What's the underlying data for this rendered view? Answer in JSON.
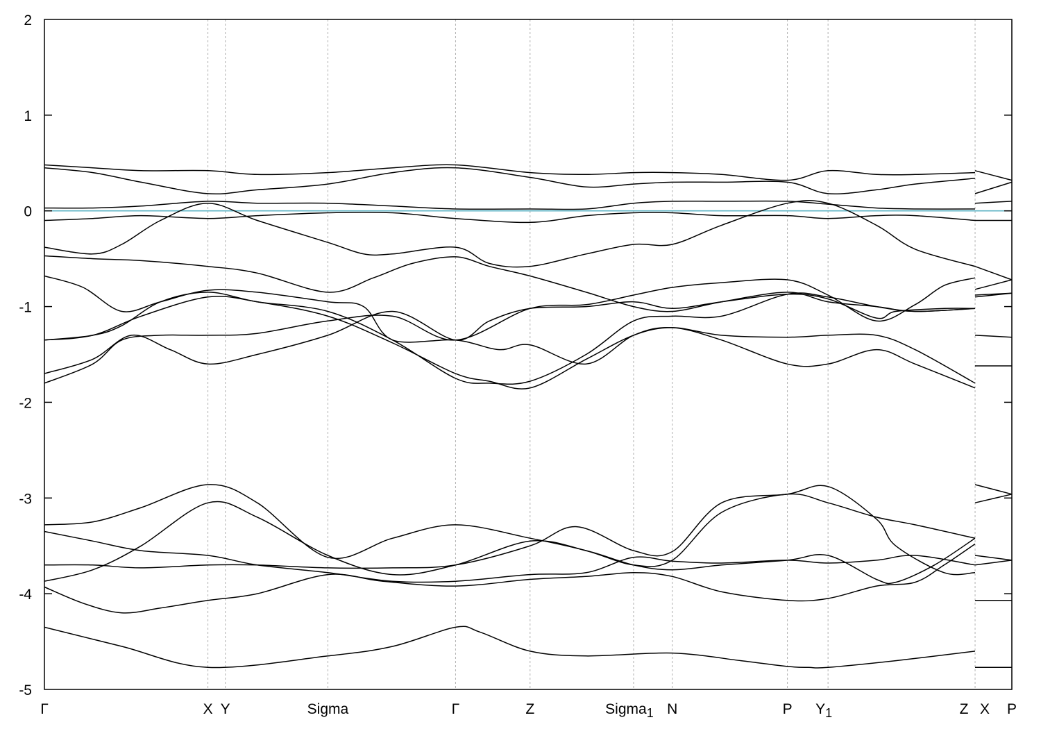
{
  "chart_data": {
    "type": "line",
    "title": "",
    "xlabel": "",
    "ylabel": "",
    "ylim": [
      -5,
      2
    ],
    "xlim": [
      0,
      1.0
    ],
    "y_ticks": [
      -5,
      -4,
      -3,
      -2,
      -1,
      0,
      1,
      2
    ],
    "y_tick_labels": [
      "-5",
      "-4",
      "-3",
      "-2",
      "-1",
      "0",
      "1",
      "2"
    ],
    "grid": "dashed vertical lines at high-symmetry points",
    "legend": "none",
    "fermi_level": {
      "y": 0,
      "color": "#5fb3c4"
    },
    "high_symmetry_points": [
      {
        "label": "Γ",
        "sub": "",
        "x": 0.0
      },
      {
        "label": "X",
        "sub": "",
        "x": 0.169
      },
      {
        "label": "Y",
        "sub": "",
        "x": 0.187
      },
      {
        "label": "Sigma",
        "sub": "",
        "x": 0.293
      },
      {
        "label": "Γ",
        "sub": "",
        "x": 0.425
      },
      {
        "label": "Z",
        "sub": "",
        "x": 0.502
      },
      {
        "label": "Sigma",
        "sub": "1",
        "x": 0.609
      },
      {
        "label": "N",
        "sub": "",
        "x": 0.649
      },
      {
        "label": "P",
        "sub": "",
        "x": 0.768
      },
      {
        "label": "Y",
        "sub": "1",
        "x": 0.81
      },
      {
        "label": "Z",
        "sub": "",
        "x": 0.962
      },
      {
        "label": "X",
        "sub": "",
        "x": 0.962
      },
      {
        "label": "P",
        "sub": "",
        "x": 1.0
      }
    ],
    "band_color": "#000000",
    "series": [
      {
        "x": [
          0,
          0.08,
          0.169,
          0.293,
          0.36,
          0.425,
          0.45,
          0.502,
          0.56,
          0.649,
          0.72,
          0.768,
          0.79,
          0.81,
          0.88,
          0.962
        ],
        "values": [
          -4.35,
          -4.55,
          -4.77,
          -4.65,
          -4.55,
          -4.35,
          -4.4,
          -4.6,
          -4.65,
          -4.62,
          -4.7,
          -4.76,
          -4.77,
          -4.77,
          -4.7,
          -4.6
        ]
      },
      {
        "x": [
          0.962,
          1.0
        ],
        "values": [
          -4.77,
          -4.77
        ]
      },
      {
        "x": [
          0,
          0.04,
          0.08,
          0.12,
          0.169,
          0.22,
          0.293,
          0.35,
          0.425,
          0.502,
          0.56,
          0.609,
          0.649,
          0.7,
          0.768,
          0.81,
          0.86,
          0.9,
          0.93,
          0.962
        ],
        "values": [
          -3.93,
          -4.1,
          -4.2,
          -4.15,
          -4.07,
          -4.0,
          -3.8,
          -3.87,
          -3.92,
          -3.85,
          -3.82,
          -3.78,
          -3.82,
          -3.98,
          -4.07,
          -4.05,
          -3.92,
          -3.88,
          -3.7,
          -3.48
        ]
      },
      {
        "x": [
          0.962,
          1.0
        ],
        "values": [
          -4.07,
          -4.07
        ]
      },
      {
        "x": [
          0,
          0.05,
          0.1,
          0.169,
          0.22,
          0.293,
          0.36,
          0.425,
          0.502,
          0.56,
          0.609,
          0.649,
          0.7,
          0.768,
          0.81,
          0.86,
          0.88,
          0.92,
          0.962
        ],
        "values": [
          -3.87,
          -3.75,
          -3.5,
          -3.05,
          -3.2,
          -3.6,
          -3.8,
          -3.7,
          -3.45,
          -3.55,
          -3.7,
          -3.75,
          -3.7,
          -3.65,
          -3.6,
          -3.85,
          -3.88,
          -3.7,
          -3.42
        ]
      },
      {
        "x": [
          0.962,
          1.0
        ],
        "values": [
          -3.05,
          -2.96
        ]
      },
      {
        "x": [
          0,
          0.05,
          0.1,
          0.169,
          0.22,
          0.293,
          0.36,
          0.425,
          0.502,
          0.56,
          0.609,
          0.649,
          0.7,
          0.768,
          0.81,
          0.86,
          0.9,
          0.962
        ],
        "values": [
          -3.28,
          -3.25,
          -3.1,
          -2.86,
          -3.05,
          -3.62,
          -3.42,
          -3.28,
          -3.42,
          -3.55,
          -3.7,
          -3.65,
          -3.15,
          -2.96,
          -3.05,
          -3.2,
          -3.28,
          -3.42
        ]
      },
      {
        "x": [
          0.962,
          1.0
        ],
        "values": [
          -2.86,
          -2.96
        ]
      },
      {
        "x": [
          0,
          0.05,
          0.1,
          0.169,
          0.22,
          0.293,
          0.36,
          0.425,
          0.502,
          0.55,
          0.609,
          0.649,
          0.7,
          0.768,
          0.81,
          0.86,
          0.88,
          0.93,
          0.962
        ],
        "values": [
          -3.7,
          -3.7,
          -3.73,
          -3.7,
          -3.7,
          -3.73,
          -3.73,
          -3.7,
          -3.5,
          -3.3,
          -3.55,
          -3.56,
          -3.05,
          -2.96,
          -2.88,
          -3.22,
          -3.5,
          -3.78,
          -3.78
        ]
      },
      {
        "x": [
          0.962,
          1.0
        ],
        "values": [
          -3.6,
          -3.65
        ]
      },
      {
        "x": [
          0,
          0.05,
          0.1,
          0.169,
          0.22,
          0.293,
          0.36,
          0.425,
          0.502,
          0.56,
          0.609,
          0.649,
          0.7,
          0.768,
          0.81,
          0.86,
          0.9,
          0.962
        ],
        "values": [
          -3.35,
          -3.45,
          -3.55,
          -3.6,
          -3.7,
          -3.78,
          -3.87,
          -3.87,
          -3.8,
          -3.78,
          -3.62,
          -3.66,
          -3.68,
          -3.65,
          -3.68,
          -3.65,
          -3.6,
          -3.7
        ]
      },
      {
        "x": [
          0.962,
          1.0
        ],
        "values": [
          -3.7,
          -3.65
        ]
      },
      {
        "x": [
          0,
          0.05,
          0.08,
          0.12,
          0.169,
          0.22,
          0.293,
          0.36,
          0.425,
          0.502,
          0.56,
          0.609,
          0.649,
          0.7,
          0.768,
          0.81,
          0.86,
          0.9,
          0.93,
          0.962
        ],
        "values": [
          -1.8,
          -1.6,
          -1.35,
          -1.3,
          -1.3,
          -1.28,
          -1.15,
          -1.1,
          -1.35,
          -1.02,
          -0.98,
          -0.88,
          -0.8,
          -0.75,
          -0.72,
          -0.88,
          -1.15,
          -0.98,
          -0.78,
          -0.7
        ]
      },
      {
        "x": [
          0.962,
          1.0
        ],
        "values": [
          -0.88,
          -0.86
        ]
      },
      {
        "x": [
          0,
          0.05,
          0.09,
          0.13,
          0.169,
          0.22,
          0.293,
          0.36,
          0.425,
          0.46,
          0.502,
          0.56,
          0.609,
          0.649,
          0.7,
          0.768,
          0.81,
          0.86,
          0.88,
          0.93,
          0.962
        ],
        "values": [
          -1.7,
          -1.55,
          -1.3,
          -1.45,
          -1.6,
          -1.5,
          -1.3,
          -1.05,
          -1.35,
          -1.15,
          -1.02,
          -1.0,
          -0.95,
          -1.02,
          -0.95,
          -0.87,
          -0.92,
          -1.12,
          -1.05,
          -1.02,
          -1.02
        ]
      },
      {
        "x": [
          0.962,
          1.0
        ],
        "values": [
          -0.9,
          -0.86
        ]
      },
      {
        "x": [
          0,
          0.05,
          0.08,
          0.12,
          0.169,
          0.22,
          0.293,
          0.36,
          0.425,
          0.46,
          0.502,
          0.56,
          0.609,
          0.649,
          0.7,
          0.768,
          0.81,
          0.86,
          0.9,
          0.962
        ],
        "values": [
          -1.35,
          -1.3,
          -1.2,
          -0.95,
          -0.85,
          -0.95,
          -1.05,
          -1.35,
          -1.75,
          -1.8,
          -1.78,
          -1.5,
          -1.15,
          -1.1,
          -1.1,
          -0.87,
          -0.9,
          -1.0,
          -1.05,
          -1.02
        ]
      },
      {
        "x": [
          0.962,
          1.0
        ],
        "values": [
          -1.3,
          -1.32
        ]
      },
      {
        "x": [
          0,
          0.05,
          0.1,
          0.169,
          0.22,
          0.293,
          0.36,
          0.425,
          0.46,
          0.502,
          0.56,
          0.609,
          0.649,
          0.7,
          0.768,
          0.81,
          0.86,
          0.9,
          0.962
        ],
        "values": [
          -1.35,
          -1.3,
          -1.1,
          -0.9,
          -0.95,
          -1.1,
          -1.38,
          -1.7,
          -1.78,
          -1.85,
          -1.55,
          -1.3,
          -1.22,
          -1.3,
          -1.32,
          -1.3,
          -1.3,
          -1.45,
          -1.8
        ]
      },
      {
        "x": [
          0.962,
          1.0
        ],
        "values": [
          -1.62,
          -1.62
        ]
      },
      {
        "x": [
          0,
          0.04,
          0.08,
          0.12,
          0.169,
          0.22,
          0.293,
          0.33,
          0.36,
          0.425,
          0.47,
          0.502,
          0.56,
          0.609,
          0.649,
          0.7,
          0.768,
          0.81,
          0.86,
          0.9,
          0.962
        ],
        "values": [
          -0.68,
          -0.8,
          -1.05,
          -0.95,
          -0.83,
          -0.85,
          -0.95,
          -1.0,
          -1.35,
          -1.35,
          -1.45,
          -1.4,
          -1.6,
          -1.3,
          -1.22,
          -1.35,
          -1.6,
          -1.6,
          -1.45,
          -1.6,
          -1.85
        ]
      },
      {
        "x": [
          0,
          0.05,
          0.1,
          0.169,
          0.22,
          0.293,
          0.34,
          0.38,
          0.425,
          0.46,
          0.502,
          0.56,
          0.609,
          0.649,
          0.7,
          0.768,
          0.81,
          0.86,
          0.9,
          0.962
        ],
        "values": [
          -0.47,
          -0.5,
          -0.52,
          -0.58,
          -0.65,
          -0.85,
          -0.7,
          -0.55,
          -0.48,
          -0.58,
          -0.68,
          -0.85,
          -1.0,
          -1.05,
          -0.95,
          -0.85,
          -0.95,
          -1.0,
          -1.05,
          -1.02
        ]
      },
      {
        "x": [
          0,
          0.05,
          0.08,
          0.12,
          0.169,
          0.22,
          0.293,
          0.33,
          0.36,
          0.425,
          0.46,
          0.502,
          0.56,
          0.609,
          0.649,
          0.7,
          0.768,
          0.81,
          0.86,
          0.9,
          0.962
        ],
        "values": [
          -0.38,
          -0.45,
          -0.35,
          -0.1,
          0.08,
          -0.1,
          -0.33,
          -0.45,
          -0.45,
          -0.38,
          -0.55,
          -0.58,
          -0.45,
          -0.35,
          -0.35,
          -0.15,
          0.08,
          0.08,
          -0.15,
          -0.4,
          -0.58
        ]
      },
      {
        "x": [
          0.962,
          1.0
        ],
        "values": [
          -0.58,
          -0.72
        ]
      },
      {
        "x": [
          0.962,
          1.0
        ],
        "values": [
          -0.82,
          -0.72
        ]
      },
      {
        "x": [
          0,
          0.05,
          0.1,
          0.169,
          0.22,
          0.293,
          0.36,
          0.425,
          0.502,
          0.56,
          0.609,
          0.649,
          0.7,
          0.768,
          0.81,
          0.86,
          0.9,
          0.962
        ],
        "values": [
          -0.1,
          -0.08,
          -0.05,
          -0.08,
          -0.05,
          -0.02,
          -0.02,
          -0.08,
          -0.12,
          -0.05,
          -0.02,
          -0.02,
          -0.05,
          -0.05,
          -0.08,
          -0.05,
          -0.05,
          -0.1
        ]
      },
      {
        "x": [
          0.962,
          1.0
        ],
        "values": [
          -0.1,
          -0.1
        ]
      },
      {
        "x": [
          0,
          0.05,
          0.1,
          0.169,
          0.22,
          0.293,
          0.36,
          0.425,
          0.502,
          0.56,
          0.609,
          0.649,
          0.7,
          0.768,
          0.81,
          0.86,
          0.9,
          0.962
        ],
        "values": [
          0.03,
          0.03,
          0.05,
          0.1,
          0.08,
          0.08,
          0.05,
          0.02,
          0.02,
          0.02,
          0.08,
          0.1,
          0.1,
          0.1,
          0.07,
          0.03,
          0.02,
          0.02
        ]
      },
      {
        "x": [
          0.962,
          1.0
        ],
        "values": [
          0.08,
          0.1
        ]
      },
      {
        "x": [
          0,
          0.05,
          0.1,
          0.169,
          0.22,
          0.293,
          0.36,
          0.425,
          0.502,
          0.56,
          0.609,
          0.649,
          0.7,
          0.768,
          0.81,
          0.86,
          0.9,
          0.962
        ],
        "values": [
          0.45,
          0.4,
          0.3,
          0.18,
          0.22,
          0.28,
          0.4,
          0.45,
          0.35,
          0.25,
          0.28,
          0.3,
          0.3,
          0.3,
          0.18,
          0.22,
          0.28,
          0.34
        ]
      },
      {
        "x": [
          0.962,
          1.0
        ],
        "values": [
          0.18,
          0.3
        ]
      },
      {
        "x": [
          0,
          0.05,
          0.1,
          0.169,
          0.22,
          0.293,
          0.36,
          0.425,
          0.502,
          0.56,
          0.609,
          0.649,
          0.7,
          0.768,
          0.81,
          0.86,
          0.9,
          0.962
        ],
        "values": [
          0.48,
          0.45,
          0.42,
          0.42,
          0.38,
          0.4,
          0.45,
          0.48,
          0.4,
          0.38,
          0.4,
          0.4,
          0.38,
          0.32,
          0.42,
          0.38,
          0.38,
          0.4
        ]
      },
      {
        "x": [
          0.962,
          1.0
        ],
        "values": [
          0.42,
          0.32
        ]
      }
    ]
  }
}
